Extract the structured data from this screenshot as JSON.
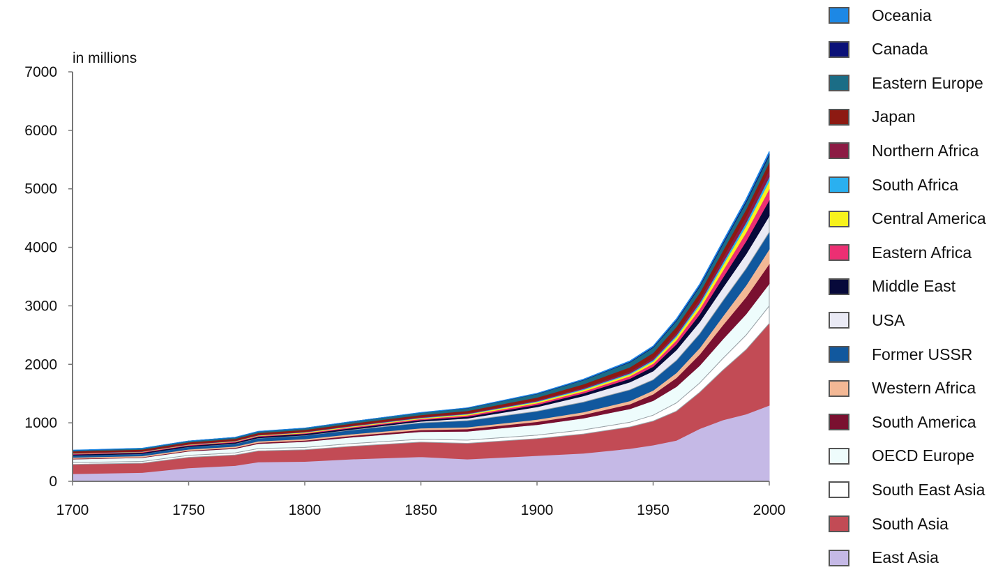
{
  "chart_data": {
    "type": "area",
    "stacked": true,
    "title": "",
    "unit_label": "in millions",
    "xlabel": "",
    "ylabel": "",
    "xlim": [
      1700,
      2000
    ],
    "ylim": [
      0,
      7000
    ],
    "x_ticks": [
      "1700",
      "1750",
      "1800",
      "1850",
      "1900",
      "1950",
      "2000"
    ],
    "y_ticks": [
      "0",
      "1000",
      "2000",
      "3000",
      "4000",
      "5000",
      "6000",
      "7000"
    ],
    "x": [
      1700,
      1730,
      1750,
      1770,
      1780,
      1800,
      1820,
      1850,
      1870,
      1900,
      1920,
      1940,
      1950,
      1960,
      1970,
      1980,
      1990,
      2000
    ],
    "series": [
      {
        "name": "East Asia",
        "color": "#c5b9e6",
        "values": [
          130,
          150,
          230,
          270,
          330,
          340,
          380,
          420,
          380,
          440,
          480,
          560,
          620,
          700,
          900,
          1050,
          1150,
          1300
        ]
      },
      {
        "name": "South Asia",
        "color": "#c24b55",
        "values": [
          160,
          160,
          180,
          180,
          190,
          200,
          220,
          250,
          270,
          290,
          330,
          370,
          410,
          500,
          620,
          850,
          1100,
          1400
        ]
      },
      {
        "name": "South East Asia",
        "color": "#ffffff",
        "values": [
          30,
          30,
          35,
          35,
          40,
          40,
          45,
          50,
          55,
          60,
          70,
          80,
          100,
          140,
          160,
          200,
          250,
          300
        ]
      },
      {
        "name": "OECD Europe",
        "color": "#eefcfc",
        "values": [
          60,
          65,
          70,
          75,
          85,
          100,
          110,
          130,
          150,
          180,
          200,
          230,
          250,
          280,
          300,
          330,
          360,
          380
        ]
      },
      {
        "name": "South America",
        "color": "#7a1030",
        "values": [
          10,
          10,
          12,
          15,
          18,
          20,
          25,
          30,
          40,
          50,
          60,
          80,
          110,
          150,
          190,
          240,
          290,
          340
        ]
      },
      {
        "name": "Western Africa",
        "color": "#f3b895",
        "values": [
          20,
          20,
          22,
          22,
          24,
          25,
          27,
          30,
          33,
          38,
          45,
          55,
          65,
          85,
          110,
          150,
          200,
          250
        ]
      },
      {
        "name": "Former USSR",
        "color": "#11589e",
        "values": [
          30,
          35,
          40,
          45,
          50,
          60,
          70,
          90,
          110,
          140,
          170,
          190,
          180,
          210,
          240,
          265,
          285,
          290
        ]
      },
      {
        "name": "USA",
        "color": "#eaeaf5",
        "values": [
          2,
          2,
          3,
          5,
          6,
          6,
          10,
          25,
          40,
          76,
          106,
          132,
          152,
          180,
          205,
          227,
          250,
          280
        ]
      },
      {
        "name": "Middle East",
        "color": "#07093a",
        "values": [
          20,
          20,
          20,
          21,
          22,
          22,
          24,
          26,
          30,
          35,
          45,
          60,
          75,
          100,
          130,
          170,
          220,
          270
        ]
      },
      {
        "name": "Eastern  Africa",
        "color": "#ec2f73",
        "values": [
          10,
          10,
          11,
          12,
          13,
          14,
          16,
          18,
          22,
          28,
          34,
          42,
          52,
          70,
          90,
          120,
          150,
          190
        ]
      },
      {
        "name": "Central America",
        "color": "#f7f21d",
        "values": [
          5,
          5,
          6,
          7,
          8,
          10,
          12,
          14,
          17,
          22,
          27,
          33,
          40,
          55,
          70,
          90,
          110,
          135
        ]
      },
      {
        "name": "South Africa",
        "color": "#2ab0f0",
        "values": [
          3,
          3,
          3,
          4,
          4,
          5,
          6,
          7,
          9,
          12,
          15,
          18,
          22,
          30,
          38,
          48,
          58,
          70
        ]
      },
      {
        "name": "Northern Africa",
        "color": "#8c1b44",
        "values": [
          8,
          8,
          9,
          10,
          10,
          11,
          12,
          14,
          16,
          20,
          24,
          30,
          38,
          50,
          65,
          85,
          105,
          125
        ]
      },
      {
        "name": "Japan",
        "color": "#8d1a12",
        "values": [
          27,
          28,
          28,
          28,
          29,
          30,
          31,
          32,
          34,
          44,
          55,
          72,
          84,
          94,
          104,
          117,
          123,
          127
        ]
      },
      {
        "name": "Eastern Europe",
        "color": "#1b6d86",
        "values": [
          15,
          17,
          19,
          21,
          23,
          25,
          30,
          37,
          45,
          60,
          70,
          85,
          90,
          100,
          108,
          115,
          120,
          120
        ]
      },
      {
        "name": "Canada",
        "color": "#0b1178",
        "values": [
          1,
          1,
          1,
          1,
          1,
          1,
          1,
          2,
          3,
          5,
          8,
          11,
          14,
          18,
          21,
          24,
          27,
          31
        ]
      },
      {
        "name": "Oceania",
        "color": "#1d88e5",
        "values": [
          2,
          2,
          2,
          2,
          2,
          2,
          2,
          2,
          3,
          6,
          8,
          11,
          13,
          16,
          19,
          23,
          27,
          31
        ]
      }
    ],
    "legend_position": "right",
    "grid": false
  }
}
